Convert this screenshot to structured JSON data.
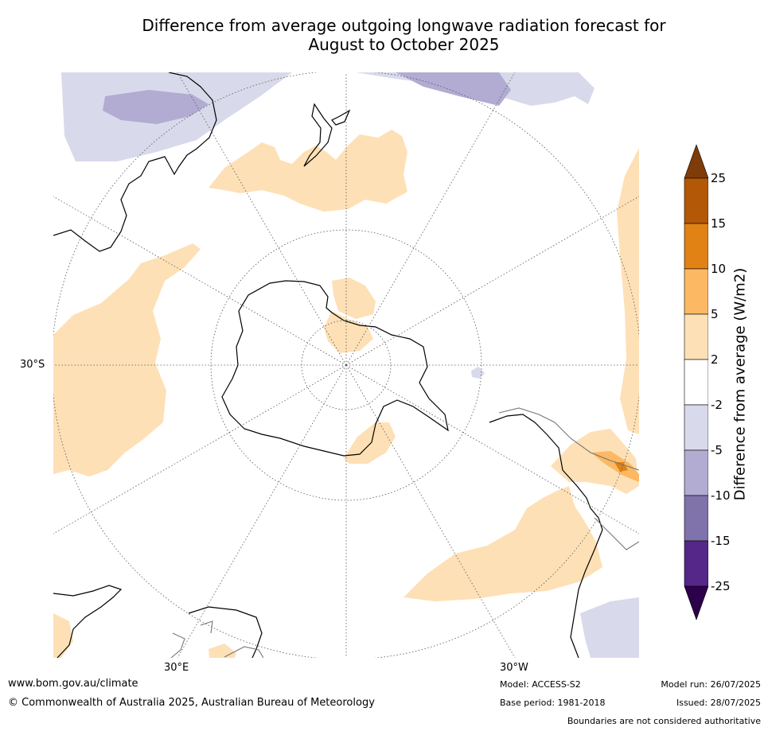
{
  "title_line1": "Difference from average outgoing longwave radiation forecast for",
  "title_line2": "August to October 2025",
  "map_labels": {
    "lat": "30°S",
    "lon_east": "30°E",
    "lon_west": "30°W"
  },
  "colorbar": {
    "label": "Difference from average (W/m2)",
    "ticks": [
      "25",
      "15",
      "10",
      "5",
      "2",
      "-2",
      "-5",
      "-10",
      "-15",
      "-25"
    ],
    "colors": {
      "gt25": "#7f3b08",
      "15_25": "#b35806",
      "10_15": "#e08214",
      "5_10": "#fdb863",
      "2_5": "#fee0b6",
      "m2_2": "#ffffff",
      "m5_m2": "#d8daeb",
      "m10_m5": "#b2abd2",
      "m15_m10": "#8073ac",
      "m25_m15": "#542788",
      "lt_m25": "#2d004b"
    }
  },
  "footer": {
    "website": "www.bom.gov.au/climate",
    "copyright": "© Commonwealth of Australia 2025, Australian Bureau of Meteorology",
    "model": "Model: ACCESS-S2",
    "base_period": "Base period: 1981-2018",
    "model_run": "Model run: 26/07/2025",
    "issued": "Issued: 28/07/2025",
    "boundaries": "Boundaries are not considered authoritative"
  }
}
